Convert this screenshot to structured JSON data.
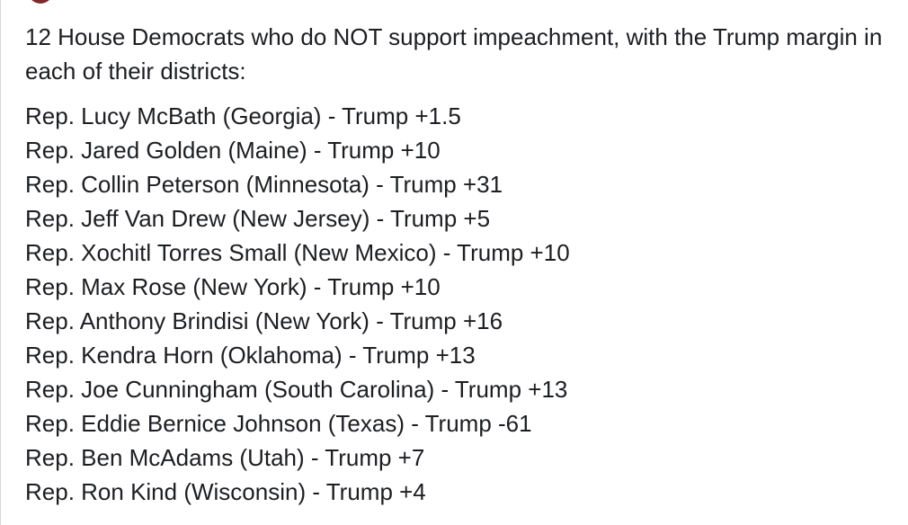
{
  "post": {
    "intro": "12 House Democrats who do NOT support impeachment, with the Trump margin in each of their districts:",
    "items": [
      "Rep. Lucy McBath (Georgia) - Trump +1.5",
      "Rep. Jared Golden (Maine) - Trump +10",
      "Rep. Collin Peterson (Minnesota) - Trump +31",
      "Rep. Jeff Van Drew (New Jersey) - Trump +5",
      "Rep. Xochitl Torres Small (New Mexico) - Trump +10",
      "Rep. Max Rose (New York) - Trump +10",
      "Rep. Anthony Brindisi (New York) - Trump +16",
      "Rep. Kendra Horn (Oklahoma) - Trump +13",
      "Rep. Joe Cunningham (South Carolina) - Trump +13",
      "Rep. Eddie Bernice Johnson (Texas) - Trump -61",
      "Rep. Ben McAdams (Utah) - Trump +7",
      "Rep. Ron Kind (Wisconsin) - Trump +4"
    ]
  }
}
